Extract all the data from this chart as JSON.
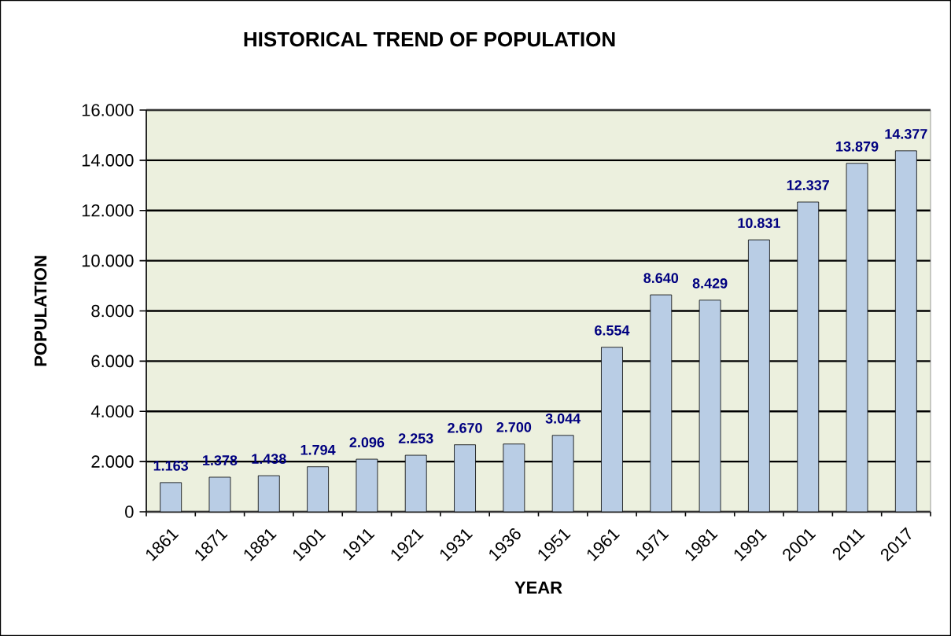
{
  "chart_data": {
    "type": "bar",
    "title": "HISTORICAL TREND OF POPULATION",
    "xlabel": "YEAR",
    "ylabel": "POPULATION",
    "categories": [
      "1861",
      "1871",
      "1881",
      "1901",
      "1911",
      "1921",
      "1931",
      "1936",
      "1951",
      "1961",
      "1971",
      "1981",
      "1991",
      "2001",
      "2011",
      "2017"
    ],
    "values": [
      1163,
      1378,
      1438,
      1794,
      2096,
      2253,
      2670,
      2700,
      3044,
      6554,
      8640,
      8429,
      10831,
      12337,
      13879,
      14377
    ],
    "value_labels": [
      "1.163",
      "1.378",
      "1.438",
      "1.794",
      "2.096",
      "2.253",
      "2.670",
      "2.700",
      "3.044",
      "6.554",
      "8.640",
      "8.429",
      "10.831",
      "12.337",
      "13.879",
      "14.377"
    ],
    "color": "#b9cde5",
    "ylim": [
      0,
      16000
    ],
    "yticks": [
      0,
      {
        "value": 2000,
        "label": "2.000"
      },
      {
        "value": 4000,
        "label": "4.000"
      },
      {
        "value": 6000,
        "label": "6.000"
      },
      {
        "value": 8000,
        "label": "8.000"
      },
      {
        "value": 10000,
        "label": "10.000"
      },
      {
        "value": 12000,
        "label": "12.000"
      },
      {
        "value": 14000,
        "label": "14.000"
      },
      {
        "value": 16000,
        "label": "16.000"
      }
    ],
    "grid": "y"
  }
}
